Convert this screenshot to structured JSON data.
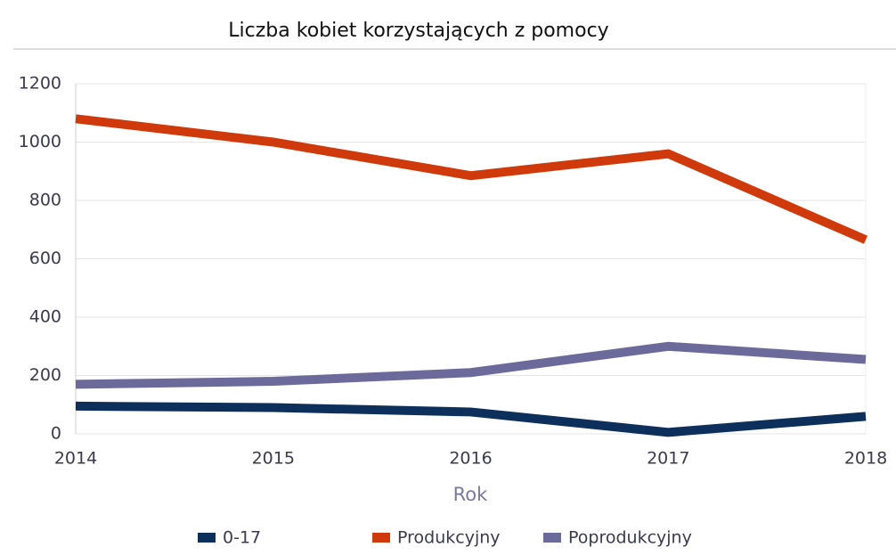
{
  "chart_data": {
    "type": "line",
    "title": "Liczba kobiet korzystających z pomocy",
    "x_label": "Rok",
    "x": [
      2014,
      2015,
      2016,
      2017,
      2018
    ],
    "xlim": [
      2014,
      2018
    ],
    "xticks": [
      2014,
      2015,
      2016,
      2017,
      2018
    ],
    "ylim": [
      0,
      1200
    ],
    "yticks": [
      0,
      200,
      400,
      600,
      800,
      1000,
      1200
    ],
    "grid": true,
    "legend": "bottom",
    "series": [
      {
        "name": "0-17",
        "color": "#0d2f5c",
        "values": [
          95,
          90,
          75,
          5,
          60
        ]
      },
      {
        "name": "Produkcyjny",
        "color": "#d0390b",
        "values": [
          1080,
          1000,
          885,
          960,
          665
        ]
      },
      {
        "name": "Poprodukcyjny",
        "color": "#6c6a9b",
        "values": [
          170,
          180,
          210,
          300,
          255
        ]
      }
    ]
  }
}
